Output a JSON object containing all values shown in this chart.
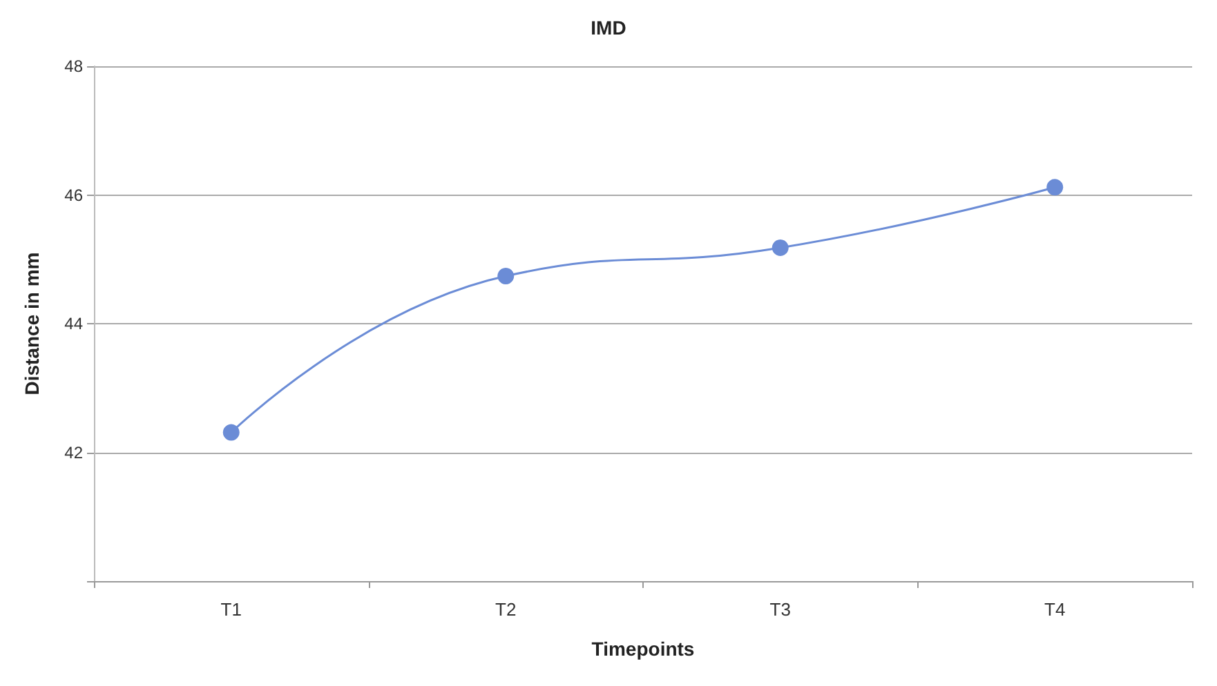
{
  "chart_data": {
    "type": "line",
    "title": "IMD",
    "xlabel": "Timepoints",
    "ylabel": "Distance in mm",
    "categories": [
      "T1",
      "T2",
      "T3",
      "T4"
    ],
    "series": [
      {
        "color": "#6b8cd6",
        "values": [
          42.31,
          44.74,
          45.18,
          46.12
        ]
      }
    ],
    "ylim": [
      40,
      48
    ],
    "yticks": [
      {
        "value": 40,
        "label": null
      },
      42,
      44,
      46,
      48
    ],
    "grid": "y",
    "marker": "circle",
    "line_style": "solid"
  }
}
